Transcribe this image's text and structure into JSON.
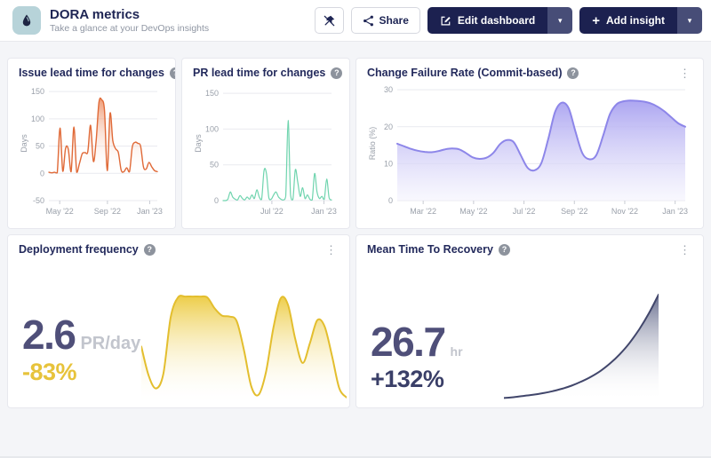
{
  "header": {
    "title": "DORA metrics",
    "subtitle": "Take a glance at your DevOps insights",
    "share_label": "Share",
    "edit_dashboard_label": "Edit dashboard",
    "add_insight_label": "Add insight"
  },
  "icons": {
    "help": "?",
    "kebab": "⋮",
    "caret": "▾",
    "plus": "+"
  },
  "colors": {
    "navy": "#1c2150",
    "title_navy": "#232a5c",
    "orange": "#e06a38",
    "teal": "#6fd4ae",
    "purple": "#8d86e9",
    "yellow": "#e7c33b",
    "metric_value": "#4f4f79",
    "metric_delta_down": "#e7c33b",
    "metric_delta_up": "#3a3f68"
  },
  "cards": [
    {
      "title": "Issue lead time for changes"
    },
    {
      "title": "PR lead time for changes"
    },
    {
      "title": "Change Failure Rate (Commit-based)"
    },
    {
      "title": "Deployment frequency",
      "value": "2.6",
      "unit": "PR/day",
      "delta": "-83%"
    },
    {
      "title": "Mean Time To Recovery",
      "value": "26.7",
      "unit": "hr",
      "delta": "+132%"
    }
  ],
  "chart_data": [
    {
      "id": "issue-lead-time",
      "type": "area",
      "title": "Issue lead time for changes",
      "ylabel": "Days",
      "axes": true,
      "ylim": [
        -50,
        160
      ],
      "yticks": [
        -50,
        0,
        50,
        100,
        150
      ],
      "xticks": [
        {
          "label": "May '22",
          "pos": 0.1
        },
        {
          "label": "Sep '22",
          "pos": 0.54
        },
        {
          "label": "Jan '23",
          "pos": 0.93
        }
      ],
      "line_color": "#e06a38",
      "line_width": 1.4,
      "fill_from": "rgba(234,118,66,0.72)",
      "fill_to": "rgba(255,255,255,0)",
      "values": [
        2,
        1,
        2,
        1,
        83,
        4,
        46,
        44,
        3,
        85,
        2,
        18,
        36,
        38,
        40,
        88,
        22,
        60,
        130,
        135,
        115,
        5,
        110,
        60,
        45,
        38,
        6,
        3,
        10,
        3,
        48,
        57,
        55,
        50,
        12,
        8,
        20,
        12,
        5,
        3
      ]
    },
    {
      "id": "pr-lead-time",
      "type": "area",
      "title": "PR lead time for changes",
      "ylabel": "Days",
      "axes": true,
      "ylim": [
        0,
        160
      ],
      "yticks": [
        0,
        50,
        100,
        150
      ],
      "xticks": [
        {
          "label": "Jul '22",
          "pos": 0.45
        },
        {
          "label": "Jan '23",
          "pos": 0.93
        }
      ],
      "line_color": "#6fd4ae",
      "line_width": 1.2,
      "fill_from": "rgba(111,212,174,0.30)",
      "fill_to": "rgba(255,255,255,0)",
      "values": [
        0,
        0,
        2,
        12,
        5,
        2,
        1,
        7,
        3,
        1,
        5,
        2,
        8,
        3,
        15,
        5,
        2,
        42,
        38,
        4,
        2,
        8,
        12,
        5,
        2,
        1,
        6,
        112,
        8,
        2,
        43,
        26,
        6,
        18,
        3,
        8,
        2,
        1,
        38,
        12,
        3,
        6,
        2,
        30,
        4,
        1
      ]
    },
    {
      "id": "change-failure-rate",
      "type": "area",
      "title": "Change Failure Rate (Commit-based)",
      "ylabel": "Ratio (%)",
      "axes": true,
      "ylim": [
        0,
        31
      ],
      "yticks": [
        0,
        10,
        20,
        30
      ],
      "xticks": [
        {
          "label": "Mar '22",
          "pos": 0.09
        },
        {
          "label": "May '22",
          "pos": 0.265
        },
        {
          "label": "Jul '22",
          "pos": 0.44
        },
        {
          "label": "Sep '22",
          "pos": 0.615
        },
        {
          "label": "Nov '22",
          "pos": 0.79
        },
        {
          "label": "Jan '23",
          "pos": 0.965
        }
      ],
      "line_color": "#8d86e9",
      "line_width": 2,
      "fill_from": "rgba(168,161,240,0.95)",
      "fill_to": "rgba(243,242,253,0.55)",
      "values": [
        15.4,
        14.7,
        14.0,
        13.5,
        13.2,
        13.1,
        13.4,
        13.9,
        14.1,
        13.9,
        12.9,
        11.7,
        11.3,
        11.6,
        12.9,
        15.3,
        16.4,
        15.8,
        12.3,
        8.9,
        8.2,
        10.1,
        16.5,
        23.9,
        26.5,
        25.0,
        18.6,
        12.8,
        11.2,
        12.2,
        17.4,
        23.3,
        26.1,
        26.9,
        27.1,
        27.0,
        26.8,
        26.3,
        25.4,
        24.1,
        22.5,
        20.9,
        20.0
      ]
    },
    {
      "id": "deployment-frequency",
      "type": "area",
      "title": "Deployment frequency",
      "axes": false,
      "ylim": [
        0,
        6.15
      ],
      "line_color": "#e3be2e",
      "line_width": 2,
      "fill_from": "rgba(236,202,62,0.95)",
      "fill_to": "rgba(255,255,255,0)",
      "values": [
        3.2,
        1.6,
        0.9,
        1.7,
        4.8,
        5.9,
        5.95,
        5.95,
        5.95,
        5.9,
        5.3,
        4.9,
        4.85,
        4.6,
        3.0,
        1.0,
        0.55,
        1.8,
        4.2,
        5.85,
        5.5,
        3.6,
        2.3,
        3.4,
        4.65,
        4.3,
        2.7,
        0.9,
        0.4
      ]
    },
    {
      "id": "mean-time-to-recovery",
      "type": "area",
      "title": "Mean Time To Recovery",
      "axes": false,
      "ylim": [
        0,
        28
      ],
      "line_color": "#41466b",
      "line_width": 2,
      "fill_from": "rgba(77,84,122,0.85)",
      "fill_to": "rgba(255,255,255,0)",
      "values": [
        0.8,
        1.0,
        1.3,
        1.6,
        2.0,
        2.5,
        3.1,
        3.9,
        4.9,
        6.1,
        7.6,
        9.5,
        11.8,
        14.6,
        18.0,
        22.0,
        26.7
      ]
    }
  ]
}
